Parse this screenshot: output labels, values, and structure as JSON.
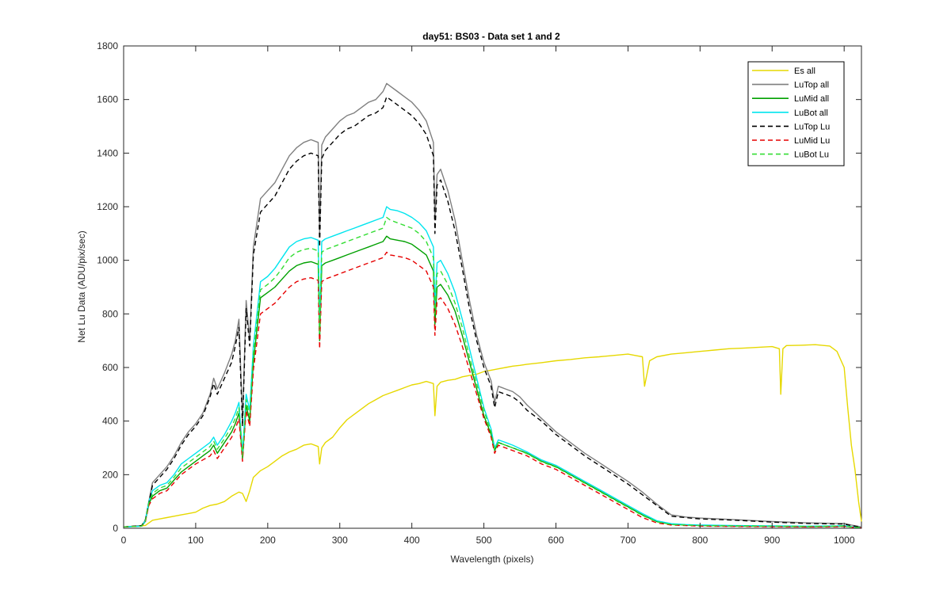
{
  "chart_data": {
    "type": "line",
    "title": "day51: BS03 - Data set 1 and 2",
    "xlabel": "Wavelength (pixels)",
    "ylabel": "Net Lu Data (ADU/pix/sec)",
    "xlim": [
      0,
      1024
    ],
    "ylim": [
      0,
      1800
    ],
    "xticks": [
      "0",
      "100",
      "200",
      "300",
      "400",
      "500",
      "600",
      "700",
      "800",
      "900",
      "1000"
    ],
    "yticks": [
      "0",
      "200",
      "400",
      "600",
      "800",
      "1000",
      "1200",
      "1400",
      "1600",
      "1800"
    ],
    "legend_position": "top-right",
    "grid": false,
    "series": [
      {
        "name": "Es  all",
        "color": "#e6d800",
        "style": "solid",
        "x": [
          0,
          30,
          40,
          50,
          60,
          70,
          80,
          90,
          100,
          110,
          120,
          130,
          140,
          150,
          160,
          165,
          170,
          175,
          180,
          190,
          200,
          210,
          220,
          230,
          240,
          250,
          260,
          270,
          272,
          275,
          280,
          290,
          300,
          310,
          320,
          330,
          340,
          350,
          360,
          370,
          380,
          390,
          400,
          410,
          420,
          430,
          432,
          435,
          440,
          450,
          460,
          470,
          480,
          490,
          500,
          510,
          520,
          530,
          540,
          550,
          560,
          580,
          600,
          620,
          640,
          660,
          680,
          700,
          710,
          720,
          723,
          730,
          740,
          760,
          780,
          800,
          820,
          840,
          860,
          880,
          900,
          910,
          912,
          915,
          920,
          940,
          960,
          980,
          990,
          1000,
          1005,
          1010,
          1015,
          1020,
          1024
        ],
        "y": [
          5,
          10,
          30,
          35,
          40,
          45,
          50,
          55,
          60,
          75,
          85,
          90,
          100,
          120,
          135,
          130,
          100,
          140,
          190,
          215,
          230,
          250,
          270,
          285,
          295,
          310,
          315,
          305,
          240,
          300,
          320,
          340,
          375,
          405,
          425,
          445,
          465,
          480,
          495,
          505,
          515,
          525,
          535,
          540,
          548,
          540,
          420,
          530,
          545,
          552,
          556,
          565,
          570,
          575,
          585,
          590,
          595,
          600,
          605,
          608,
          612,
          618,
          625,
          630,
          636,
          640,
          645,
          650,
          645,
          640,
          530,
          625,
          640,
          650,
          655,
          660,
          665,
          670,
          672,
          675,
          678,
          670,
          500,
          670,
          682,
          683,
          685,
          680,
          660,
          600,
          450,
          310,
          220,
          100,
          25
        ]
      },
      {
        "name": "LuTop  all",
        "color": "#7f7f7f",
        "style": "solid",
        "x": [
          0,
          25,
          30,
          35,
          40,
          50,
          60,
          70,
          80,
          90,
          100,
          110,
          120,
          125,
          130,
          140,
          150,
          155,
          160,
          165,
          170,
          175,
          180,
          190,
          200,
          210,
          220,
          230,
          240,
          250,
          260,
          270,
          272,
          275,
          280,
          290,
          300,
          310,
          320,
          330,
          340,
          350,
          360,
          365,
          370,
          380,
          390,
          400,
          410,
          420,
          430,
          432,
          435,
          440,
          450,
          460,
          470,
          480,
          490,
          500,
          510,
          515,
          520,
          530,
          540,
          550,
          560,
          580,
          600,
          620,
          640,
          660,
          680,
          700,
          720,
          740,
          760,
          780,
          800,
          850,
          900,
          950,
          990,
          1000,
          1010,
          1024
        ],
        "y": [
          5,
          10,
          30,
          100,
          170,
          200,
          230,
          270,
          320,
          360,
          390,
          430,
          500,
          560,
          520,
          580,
          650,
          700,
          780,
          400,
          850,
          700,
          1050,
          1230,
          1260,
          1290,
          1340,
          1390,
          1420,
          1440,
          1450,
          1440,
          1100,
          1430,
          1460,
          1490,
          1520,
          1540,
          1550,
          1570,
          1590,
          1600,
          1630,
          1660,
          1650,
          1630,
          1610,
          1590,
          1560,
          1520,
          1440,
          1150,
          1320,
          1340,
          1260,
          1150,
          1000,
          850,
          720,
          620,
          550,
          470,
          530,
          520,
          510,
          490,
          460,
          410,
          360,
          320,
          280,
          245,
          210,
          175,
          135,
          90,
          50,
          42,
          38,
          32,
          25,
          20,
          18,
          18,
          12,
          5
        ]
      },
      {
        "name": "LuMid  all",
        "color": "#00a000",
        "style": "solid",
        "x": [
          0,
          25,
          30,
          35,
          40,
          50,
          60,
          70,
          80,
          90,
          100,
          110,
          120,
          125,
          130,
          140,
          150,
          155,
          160,
          165,
          170,
          175,
          180,
          190,
          200,
          210,
          220,
          230,
          240,
          250,
          260,
          270,
          272,
          275,
          280,
          290,
          300,
          310,
          320,
          330,
          340,
          350,
          360,
          365,
          370,
          380,
          390,
          400,
          410,
          420,
          430,
          432,
          435,
          440,
          450,
          460,
          470,
          480,
          490,
          500,
          510,
          515,
          520,
          530,
          540,
          560,
          580,
          600,
          620,
          640,
          660,
          680,
          700,
          720,
          740,
          760,
          780,
          800,
          850,
          900,
          950,
          990,
          1000,
          1010,
          1024
        ],
        "y": [
          5,
          8,
          25,
          90,
          120,
          140,
          150,
          180,
          210,
          230,
          250,
          270,
          290,
          310,
          280,
          320,
          360,
          390,
          430,
          260,
          460,
          400,
          620,
          860,
          880,
          900,
          930,
          960,
          980,
          990,
          995,
          985,
          700,
          980,
          990,
          1000,
          1010,
          1020,
          1030,
          1040,
          1050,
          1060,
          1070,
          1090,
          1080,
          1075,
          1070,
          1060,
          1040,
          1020,
          960,
          760,
          900,
          910,
          870,
          810,
          720,
          620,
          520,
          420,
          350,
          290,
          320,
          310,
          300,
          280,
          250,
          230,
          200,
          170,
          140,
          110,
          80,
          50,
          25,
          15,
          12,
          10,
          8,
          7,
          6,
          7,
          8,
          5,
          3
        ]
      },
      {
        "name": "LuBot  all",
        "color": "#00e5ee",
        "style": "solid",
        "x": [
          0,
          25,
          30,
          35,
          40,
          50,
          60,
          70,
          80,
          90,
          100,
          110,
          120,
          125,
          130,
          140,
          150,
          155,
          160,
          165,
          170,
          175,
          180,
          190,
          200,
          210,
          220,
          230,
          240,
          250,
          260,
          270,
          272,
          275,
          280,
          290,
          300,
          310,
          320,
          330,
          340,
          350,
          360,
          365,
          370,
          380,
          390,
          400,
          410,
          420,
          430,
          432,
          435,
          440,
          450,
          460,
          470,
          480,
          490,
          500,
          510,
          515,
          520,
          530,
          540,
          560,
          580,
          600,
          620,
          640,
          660,
          680,
          700,
          720,
          740,
          760,
          780,
          800,
          850,
          900,
          950,
          990,
          1000,
          1010,
          1024
        ],
        "y": [
          5,
          8,
          28,
          100,
          140,
          160,
          170,
          200,
          240,
          260,
          280,
          300,
          320,
          340,
          310,
          350,
          400,
          430,
          470,
          280,
          500,
          440,
          680,
          920,
          940,
          970,
          1010,
          1050,
          1070,
          1080,
          1085,
          1075,
          760,
          1070,
          1080,
          1090,
          1100,
          1110,
          1120,
          1130,
          1140,
          1150,
          1160,
          1200,
          1190,
          1185,
          1175,
          1160,
          1140,
          1110,
          1050,
          830,
          990,
          1000,
          950,
          880,
          780,
          670,
          560,
          450,
          370,
          300,
          330,
          320,
          310,
          285,
          255,
          235,
          205,
          175,
          145,
          115,
          85,
          55,
          28,
          17,
          14,
          12,
          10,
          9,
          8,
          9,
          10,
          6,
          3
        ]
      },
      {
        "name": "LuTop  Lu",
        "color": "#000000",
        "style": "dashed",
        "x": [
          0,
          25,
          30,
          35,
          40,
          50,
          60,
          70,
          80,
          90,
          100,
          110,
          120,
          125,
          130,
          140,
          150,
          155,
          160,
          165,
          170,
          175,
          180,
          190,
          200,
          210,
          220,
          230,
          240,
          250,
          260,
          270,
          272,
          275,
          280,
          290,
          300,
          310,
          320,
          330,
          340,
          350,
          360,
          365,
          370,
          380,
          390,
          400,
          410,
          420,
          430,
          432,
          435,
          440,
          450,
          460,
          470,
          480,
          490,
          500,
          510,
          515,
          520,
          530,
          540,
          550,
          560,
          580,
          600,
          620,
          640,
          660,
          680,
          700,
          720,
          740,
          760,
          780,
          800,
          850,
          900,
          950,
          990,
          1000,
          1010,
          1024
        ],
        "y": [
          5,
          10,
          30,
          95,
          160,
          190,
          220,
          260,
          310,
          350,
          380,
          420,
          490,
          540,
          500,
          560,
          620,
          680,
          750,
          380,
          820,
          680,
          1020,
          1180,
          1210,
          1240,
          1290,
          1340,
          1370,
          1390,
          1400,
          1390,
          1050,
          1380,
          1410,
          1440,
          1470,
          1490,
          1500,
          1520,
          1540,
          1550,
          1570,
          1610,
          1600,
          1580,
          1560,
          1540,
          1510,
          1470,
          1390,
          1100,
          1280,
          1300,
          1220,
          1110,
          970,
          820,
          700,
          600,
          530,
          450,
          510,
          500,
          490,
          470,
          440,
          400,
          350,
          310,
          270,
          235,
          200,
          165,
          125,
          85,
          45,
          40,
          35,
          30,
          23,
          18,
          16,
          16,
          10,
          4
        ]
      },
      {
        "name": "LuMid  Lu",
        "color": "#e60000",
        "style": "dashed",
        "x": [
          0,
          25,
          30,
          35,
          40,
          50,
          60,
          70,
          80,
          90,
          100,
          110,
          120,
          125,
          130,
          140,
          150,
          155,
          160,
          165,
          170,
          175,
          180,
          190,
          200,
          210,
          220,
          230,
          240,
          250,
          260,
          270,
          272,
          275,
          280,
          290,
          300,
          310,
          320,
          330,
          340,
          350,
          360,
          365,
          370,
          380,
          390,
          400,
          410,
          420,
          430,
          432,
          435,
          440,
          450,
          460,
          470,
          480,
          490,
          500,
          510,
          515,
          520,
          530,
          540,
          560,
          580,
          600,
          620,
          640,
          660,
          680,
          700,
          720,
          740,
          760,
          780,
          800,
          850,
          900,
          950,
          990,
          1000,
          1010,
          1024
        ],
        "y": [
          5,
          8,
          22,
          85,
          110,
          130,
          140,
          170,
          200,
          220,
          240,
          255,
          270,
          290,
          260,
          300,
          340,
          370,
          410,
          250,
          440,
          380,
          590,
          800,
          820,
          840,
          870,
          900,
          920,
          930,
          935,
          925,
          670,
          920,
          930,
          940,
          950,
          960,
          970,
          980,
          990,
          1000,
          1010,
          1030,
          1020,
          1015,
          1010,
          1000,
          980,
          960,
          900,
          720,
          850,
          860,
          820,
          760,
          680,
          590,
          500,
          410,
          340,
          280,
          310,
          300,
          290,
          270,
          240,
          220,
          190,
          160,
          130,
          100,
          70,
          40,
          20,
          12,
          10,
          8,
          7,
          6,
          5,
          6,
          7,
          4,
          2
        ]
      },
      {
        "name": "LuBot  Lu",
        "color": "#33dd33",
        "style": "dashed",
        "x": [
          0,
          25,
          30,
          35,
          40,
          50,
          60,
          70,
          80,
          90,
          100,
          110,
          120,
          125,
          130,
          140,
          150,
          155,
          160,
          165,
          170,
          175,
          180,
          190,
          200,
          210,
          220,
          230,
          240,
          250,
          260,
          270,
          272,
          275,
          280,
          290,
          300,
          310,
          320,
          330,
          340,
          350,
          360,
          365,
          370,
          380,
          390,
          400,
          410,
          420,
          430,
          432,
          435,
          440,
          450,
          460,
          470,
          480,
          490,
          500,
          510,
          515,
          520,
          530,
          540,
          560,
          580,
          600,
          620,
          640,
          660,
          680,
          700,
          720,
          740,
          760,
          780,
          800,
          850,
          900,
          950,
          990,
          1000,
          1010,
          1024
        ],
        "y": [
          5,
          8,
          26,
          95,
          130,
          150,
          160,
          190,
          225,
          245,
          265,
          285,
          305,
          325,
          295,
          335,
          380,
          410,
          450,
          270,
          480,
          420,
          650,
          890,
          910,
          935,
          970,
          1010,
          1030,
          1040,
          1045,
          1035,
          730,
          1030,
          1040,
          1050,
          1060,
          1070,
          1080,
          1090,
          1100,
          1110,
          1120,
          1160,
          1150,
          1140,
          1130,
          1120,
          1100,
          1070,
          1010,
          800,
          950,
          960,
          910,
          840,
          750,
          640,
          540,
          440,
          360,
          295,
          320,
          310,
          300,
          278,
          248,
          228,
          198,
          168,
          138,
          108,
          78,
          48,
          24,
          14,
          12,
          10,
          9,
          8,
          7,
          8,
          9,
          5,
          2
        ]
      }
    ]
  }
}
